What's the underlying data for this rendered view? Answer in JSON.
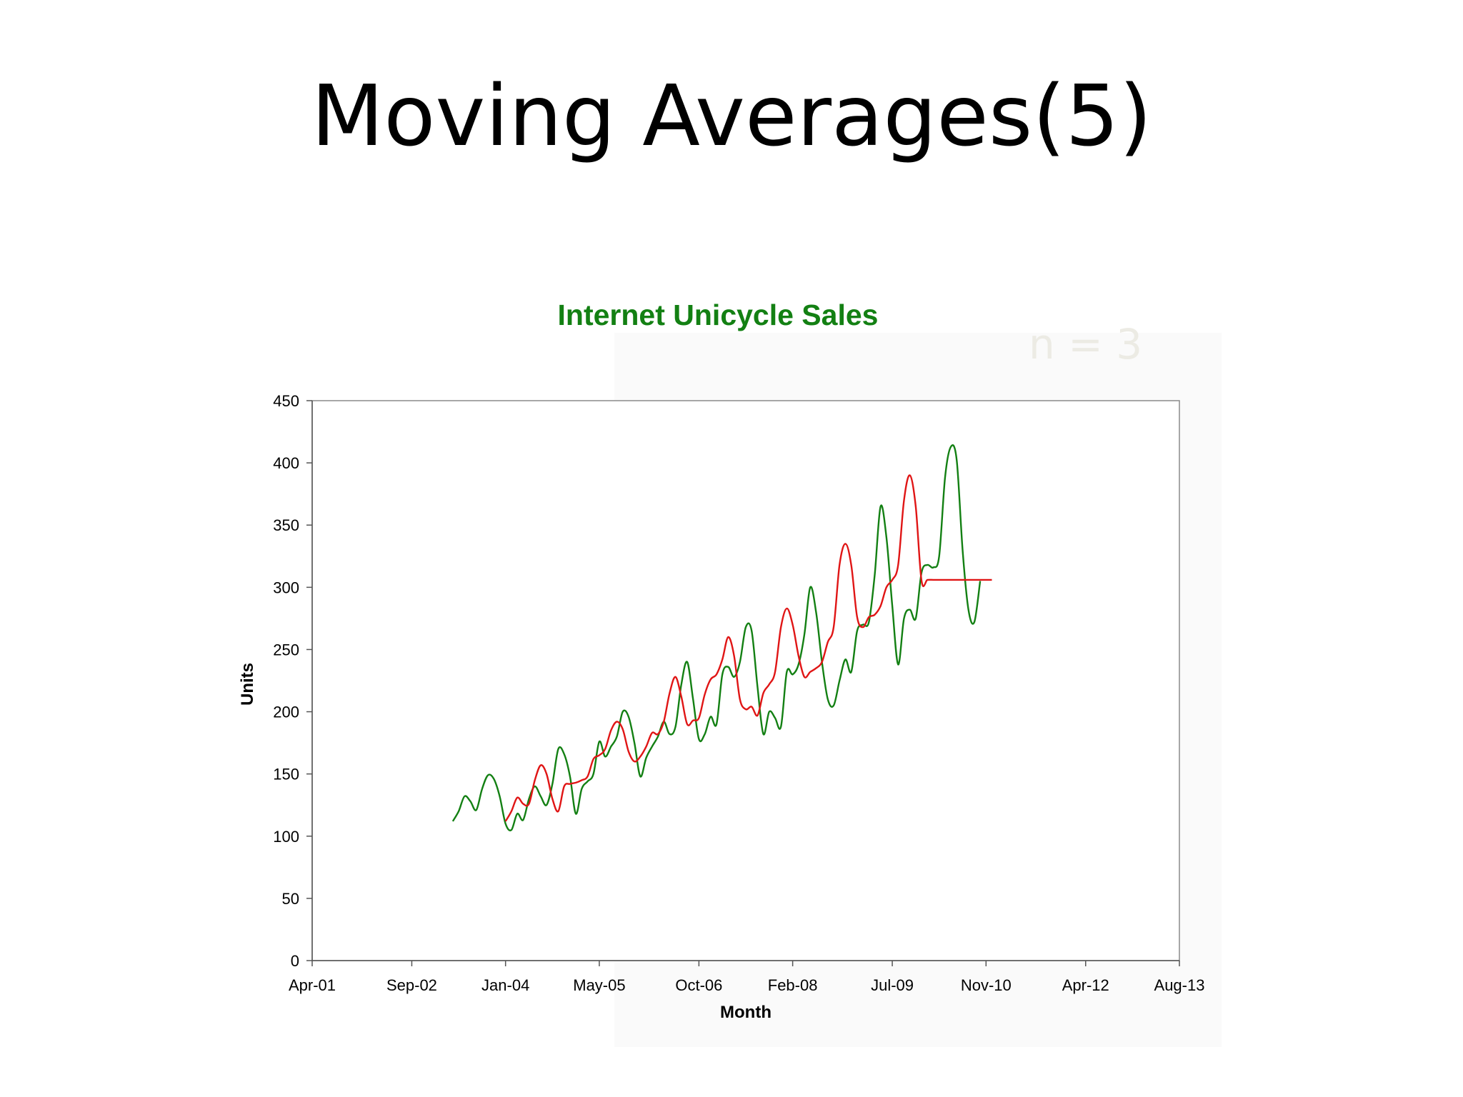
{
  "slide": {
    "title": "Moving Averages(5)",
    "annotation": "n = 3"
  },
  "chart_data": {
    "type": "line",
    "title": "Internet Unicycle Sales",
    "xlabel": "Month",
    "ylabel": "Units",
    "ylim": [
      0,
      450
    ],
    "yticks": [
      0,
      50,
      100,
      150,
      200,
      250,
      300,
      350,
      400,
      450
    ],
    "xticks": [
      "Apr-01",
      "Sep-02",
      "Jan-04",
      "May-05",
      "Oct-06",
      "Feb-08",
      "Jul-09",
      "Nov-10",
      "Apr-12",
      "Aug-13"
    ],
    "grid": false,
    "legend": "none",
    "x_unit": "month",
    "x_start": "Apr-01",
    "series": [
      {
        "color": "#138013",
        "start": "Apr-03",
        "values": [
          112,
          120,
          132,
          128,
          121,
          138,
          149,
          146,
          132,
          110,
          105,
          118,
          113,
          130,
          140,
          132,
          125,
          142,
          170,
          166,
          148,
          118,
          138,
          144,
          150,
          176,
          164,
          172,
          180,
          200,
          196,
          175,
          148,
          163,
          172,
          180,
          192,
          182,
          188,
          222,
          240,
          210,
          178,
          182,
          196,
          190,
          230,
          236,
          228,
          240,
          268,
          265,
          220,
          182,
          200,
          195,
          188,
          232,
          230,
          238,
          262,
          300,
          280,
          240,
          210,
          205,
          225,
          242,
          232,
          265,
          270,
          272,
          310,
          365,
          340,
          285,
          238,
          275,
          282,
          275,
          312,
          318,
          316,
          325,
          388,
          413,
          402,
          330,
          282,
          272,
          305
        ]
      },
      {
        "color": "#e01515",
        "start": "Jan-04",
        "values": [
          112,
          120,
          131,
          126,
          126,
          145,
          157,
          150,
          130,
          120,
          140,
          142,
          143,
          145,
          148,
          162,
          165,
          170,
          185,
          192,
          186,
          168,
          160,
          164,
          172,
          183,
          182,
          192,
          215,
          228,
          212,
          190,
          193,
          195,
          214,
          226,
          230,
          242,
          260,
          245,
          210,
          202,
          204,
          197,
          215,
          222,
          232,
          268,
          283,
          270,
          245,
          228,
          232,
          235,
          240,
          256,
          268,
          318,
          335,
          318,
          276,
          268,
          276,
          278,
          285,
          300,
          306,
          318,
          370,
          390,
          365,
          305,
          306,
          306,
          306,
          306,
          306,
          306,
          306,
          306,
          306,
          306,
          306,
          306
        ]
      }
    ]
  }
}
